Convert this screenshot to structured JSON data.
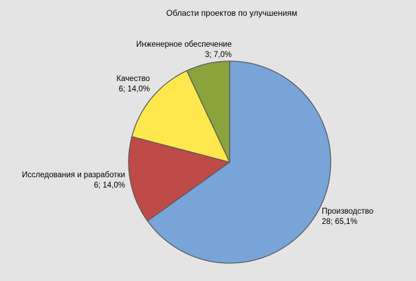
{
  "background_color": "#e4e4e4",
  "slice_border_color": "#595a5e",
  "text_color": "#000000",
  "chart_data": {
    "type": "pie",
    "title": "Области проектов по улучшениям",
    "total": 43,
    "start_angle_deg": 0,
    "direction": "clockwise",
    "legend_position": "none",
    "labels_position": "outside",
    "label_format": "count; percent",
    "slices": [
      {
        "key": "production",
        "label": "Производство",
        "value": 28,
        "pct_text": "65,1%",
        "value_text": "28; 65,1%",
        "color": "#79a4d8"
      },
      {
        "key": "research-development",
        "label": "Исследования и разработки",
        "value": 6,
        "pct_text": "14,0%",
        "value_text": "6; 14,0%",
        "color": "#be4b48"
      },
      {
        "key": "quality",
        "label": "Качество",
        "value": 6,
        "pct_text": "14,0%",
        "value_text": "6; 14,0%",
        "color": "#ffe84d"
      },
      {
        "key": "engineering-support",
        "label": "Инженерное обеспечение",
        "value": 3,
        "pct_text": "7,0%",
        "value_text": "3; 7,0%",
        "color": "#8ba33b"
      }
    ]
  }
}
